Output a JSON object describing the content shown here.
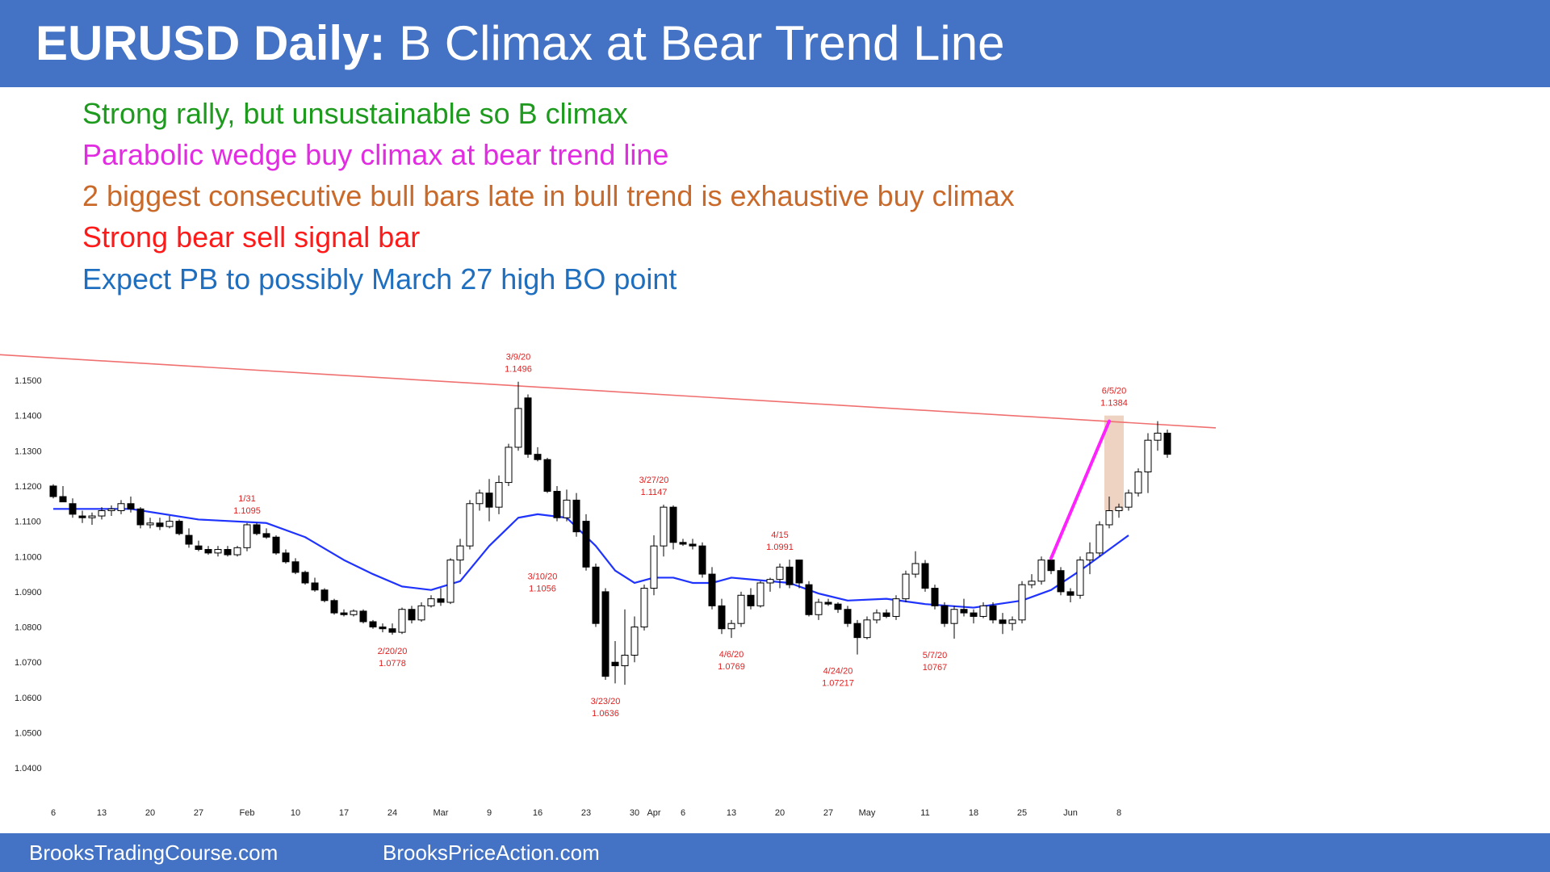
{
  "header": {
    "title_bold": "EURUSD Daily:",
    "title_rest": " B Climax at Bear Trend Line"
  },
  "notes": [
    {
      "text": "Strong rally, but unsustainable so B climax",
      "color": "#1e9a1e"
    },
    {
      "text": "Parabolic wedge buy climax at bear trend line",
      "color": "#e22ce2"
    },
    {
      "text": "2 biggest consecutive bull bars late in bull trend is exhaustive buy climax",
      "color": "#c96a2a"
    },
    {
      "text": "Strong bear sell signal bar",
      "color": "#ff1a1a"
    },
    {
      "text": "Expect PB to possibly March 27 high BO point",
      "color": "#1f6fc0"
    }
  ],
  "footer": {
    "left": "BrooksTradingCourse.com",
    "right": "BrooksPriceAction.com"
  },
  "colors": {
    "header_bg": "#4472c4",
    "ma": "#1f33ff",
    "trendline": "#f07070",
    "wedge": "#ff22ff",
    "annotation": "#e02020",
    "zone": "#e9c4ad"
  },
  "chart_data": {
    "type": "candlestick",
    "title": "",
    "xlabel": "",
    "ylabel": "",
    "ylim": [
      1.036,
      1.156
    ],
    "y_ticks": [
      1.15,
      1.14,
      1.13,
      1.12,
      1.11,
      1.1,
      1.09,
      1.08,
      1.07,
      1.06,
      1.05,
      1.04
    ],
    "y_tick_labels": [
      "1.1500",
      "1.1400",
      "1.1300",
      "1.1200",
      "1.1100",
      "1.1000",
      "1.0900",
      "1.0800",
      "1.0700",
      "1.0600",
      "1.0500",
      "1.0400"
    ],
    "x_ticks": [
      {
        "label": "6",
        "i": 0
      },
      {
        "label": "13",
        "i": 5
      },
      {
        "label": "20",
        "i": 10
      },
      {
        "label": "27",
        "i": 15
      },
      {
        "label": "Feb",
        "i": 20
      },
      {
        "label": "10",
        "i": 25
      },
      {
        "label": "17",
        "i": 30
      },
      {
        "label": "24",
        "i": 35
      },
      {
        "label": "Mar",
        "i": 40
      },
      {
        "label": "9",
        "i": 45
      },
      {
        "label": "16",
        "i": 50
      },
      {
        "label": "23",
        "i": 55
      },
      {
        "label": "30",
        "i": 60
      },
      {
        "label": "Apr",
        "i": 62
      },
      {
        "label": "6",
        "i": 65
      },
      {
        "label": "13",
        "i": 70
      },
      {
        "label": "20",
        "i": 75
      },
      {
        "label": "27",
        "i": 80
      },
      {
        "label": "May",
        "i": 84
      },
      {
        "label": "11",
        "i": 90
      },
      {
        "label": "18",
        "i": 95
      },
      {
        "label": "25",
        "i": 100
      },
      {
        "label": "Jun",
        "i": 105
      },
      {
        "label": "8",
        "i": 110
      }
    ],
    "candles": [
      [
        1.12,
        1.1205,
        1.1165,
        1.117
      ],
      [
        1.117,
        1.12,
        1.1155,
        1.1155
      ],
      [
        1.115,
        1.1165,
        1.111,
        1.112
      ],
      [
        1.1115,
        1.113,
        1.1095,
        1.111
      ],
      [
        1.111,
        1.1125,
        1.109,
        1.1115
      ],
      [
        1.1115,
        1.114,
        1.1105,
        1.113
      ],
      [
        1.113,
        1.1145,
        1.1115,
        1.1135
      ],
      [
        1.113,
        1.116,
        1.112,
        1.115
      ],
      [
        1.115,
        1.117,
        1.1125,
        1.1135
      ],
      [
        1.1135,
        1.114,
        1.108,
        1.109
      ],
      [
        1.109,
        1.111,
        1.108,
        1.1095
      ],
      [
        1.1095,
        1.111,
        1.1075,
        1.1085
      ],
      [
        1.1085,
        1.1115,
        1.108,
        1.11
      ],
      [
        1.11,
        1.1105,
        1.106,
        1.1065
      ],
      [
        1.106,
        1.108,
        1.1025,
        1.1035
      ],
      [
        1.103,
        1.1045,
        1.1015,
        1.102
      ],
      [
        1.102,
        1.103,
        1.1005,
        1.101
      ],
      [
        1.101,
        1.103,
        1.1,
        1.102
      ],
      [
        1.102,
        1.103,
        1.1,
        1.1005
      ],
      [
        1.1005,
        1.103,
        1.1,
        1.1025
      ],
      [
        1.1025,
        1.1095,
        1.1015,
        1.109
      ],
      [
        1.109,
        1.1095,
        1.106,
        1.1065
      ],
      [
        1.1065,
        1.108,
        1.105,
        1.1055
      ],
      [
        1.1055,
        1.106,
        1.1005,
        1.101
      ],
      [
        1.101,
        1.102,
        1.098,
        1.0985
      ],
      [
        1.0985,
        1.0995,
        1.095,
        1.0955
      ],
      [
        1.0955,
        1.096,
        1.092,
        1.0925
      ],
      [
        1.0925,
        1.094,
        1.09,
        1.0905
      ],
      [
        1.0905,
        1.091,
        1.087,
        1.0875
      ],
      [
        1.0875,
        1.088,
        1.0835,
        1.084
      ],
      [
        1.084,
        1.085,
        1.083,
        1.0835
      ],
      [
        1.0835,
        1.085,
        1.083,
        1.0845
      ],
      [
        1.0845,
        1.085,
        1.081,
        1.0815
      ],
      [
        1.0815,
        1.082,
        1.0795,
        1.08
      ],
      [
        1.08,
        1.081,
        1.0785,
        1.0795
      ],
      [
        1.0795,
        1.081,
        1.0778,
        1.0785
      ],
      [
        1.0785,
        1.0855,
        1.078,
        1.085
      ],
      [
        1.085,
        1.086,
        1.081,
        1.082
      ],
      [
        1.082,
        1.087,
        1.0815,
        1.086
      ],
      [
        1.086,
        1.089,
        1.0855,
        1.088
      ],
      [
        1.088,
        1.091,
        1.086,
        1.087
      ],
      [
        1.087,
        1.0995,
        1.0865,
        1.099
      ],
      [
        1.099,
        1.105,
        1.095,
        1.103
      ],
      [
        1.103,
        1.116,
        1.102,
        1.115
      ],
      [
        1.115,
        1.119,
        1.113,
        1.118
      ],
      [
        1.118,
        1.122,
        1.11,
        1.114
      ],
      [
        1.114,
        1.123,
        1.112,
        1.121
      ],
      [
        1.121,
        1.132,
        1.12,
        1.131
      ],
      [
        1.131,
        1.1496,
        1.13,
        1.142
      ],
      [
        1.145,
        1.146,
        1.128,
        1.129
      ],
      [
        1.129,
        1.131,
        1.127,
        1.1275
      ],
      [
        1.1275,
        1.128,
        1.118,
        1.1185
      ],
      [
        1.1185,
        1.12,
        1.11,
        1.111
      ],
      [
        1.111,
        1.119,
        1.11,
        1.116
      ],
      [
        1.116,
        1.118,
        1.1056,
        1.107
      ],
      [
        1.11,
        1.112,
        1.096,
        1.097
      ],
      [
        1.097,
        1.098,
        1.08,
        1.081
      ],
      [
        1.09,
        1.091,
        1.065,
        1.066
      ],
      [
        1.07,
        1.076,
        1.064,
        1.069
      ],
      [
        1.069,
        1.085,
        1.0636,
        1.072
      ],
      [
        1.072,
        1.083,
        1.07,
        1.08
      ],
      [
        1.08,
        1.092,
        1.079,
        1.091
      ],
      [
        1.091,
        1.106,
        1.089,
        1.103
      ],
      [
        1.103,
        1.1147,
        1.1,
        1.114
      ],
      [
        1.114,
        1.1145,
        1.102,
        1.104
      ],
      [
        1.104,
        1.105,
        1.103,
        1.1035
      ],
      [
        1.1035,
        1.105,
        1.102,
        1.103
      ],
      [
        1.103,
        1.104,
        1.094,
        1.095
      ],
      [
        1.095,
        1.097,
        1.085,
        1.086
      ],
      [
        1.086,
        1.088,
        1.078,
        1.0795
      ],
      [
        1.0795,
        1.082,
        1.0769,
        1.081
      ],
      [
        1.081,
        1.09,
        1.08,
        1.089
      ],
      [
        1.089,
        1.091,
        1.085,
        1.086
      ],
      [
        1.086,
        1.093,
        1.0855,
        1.0925
      ],
      [
        1.0925,
        1.094,
        1.09,
        1.0935
      ],
      [
        1.0935,
        1.098,
        1.091,
        1.097
      ],
      [
        1.097,
        1.0991,
        1.091,
        1.092
      ],
      [
        1.099,
        1.0991,
        1.091,
        1.0925
      ],
      [
        1.092,
        1.093,
        1.083,
        1.0835
      ],
      [
        1.0835,
        1.088,
        1.082,
        1.087
      ],
      [
        1.087,
        1.088,
        1.086,
        1.0865
      ],
      [
        1.0865,
        1.087,
        1.084,
        1.085
      ],
      [
        1.085,
        1.086,
        1.08,
        1.081
      ],
      [
        1.081,
        1.082,
        1.0722,
        1.077
      ],
      [
        1.077,
        1.083,
        1.0765,
        1.082
      ],
      [
        1.082,
        1.085,
        1.081,
        1.084
      ],
      [
        1.084,
        1.085,
        1.0825,
        1.083
      ],
      [
        1.083,
        1.089,
        1.082,
        1.088
      ],
      [
        1.088,
        1.096,
        1.087,
        1.095
      ],
      [
        1.095,
        1.1015,
        1.094,
        1.098
      ],
      [
        1.098,
        1.099,
        1.09,
        1.091
      ],
      [
        1.091,
        1.092,
        1.085,
        1.086
      ],
      [
        1.086,
        1.087,
        1.08,
        1.081
      ],
      [
        1.081,
        1.086,
        1.0767,
        1.085
      ],
      [
        1.085,
        1.088,
        1.083,
        1.084
      ],
      [
        1.084,
        1.085,
        1.081,
        1.083
      ],
      [
        1.083,
        1.087,
        1.0825,
        1.086
      ],
      [
        1.086,
        1.087,
        1.081,
        1.082
      ],
      [
        1.082,
        1.084,
        1.078,
        1.081
      ],
      [
        1.081,
        1.083,
        1.079,
        1.082
      ],
      [
        1.082,
        1.093,
        1.081,
        1.092
      ],
      [
        1.092,
        1.095,
        1.091,
        1.093
      ],
      [
        1.093,
        1.1,
        1.092,
        1.099
      ],
      [
        1.099,
        1.1,
        1.095,
        1.096
      ],
      [
        1.096,
        1.097,
        1.089,
        1.09
      ],
      [
        1.09,
        1.091,
        1.087,
        1.089
      ],
      [
        1.089,
        1.1,
        1.088,
        1.099
      ],
      [
        1.099,
        1.104,
        1.095,
        1.101
      ],
      [
        1.101,
        1.11,
        1.1,
        1.109
      ],
      [
        1.109,
        1.117,
        1.108,
        1.113
      ],
      [
        1.113,
        1.115,
        1.111,
        1.114
      ],
      [
        1.114,
        1.119,
        1.113,
        1.118
      ],
      [
        1.118,
        1.125,
        1.117,
        1.124
      ],
      [
        1.124,
        1.135,
        1.118,
        1.133
      ],
      [
        1.133,
        1.1384,
        1.13,
        1.135
      ],
      [
        1.135,
        1.136,
        1.128,
        1.129
      ]
    ],
    "moving_average": [
      [
        0,
        1.1135
      ],
      [
        8,
        1.1135
      ],
      [
        15,
        1.1105
      ],
      [
        22,
        1.1095
      ],
      [
        26,
        1.1055
      ],
      [
        30,
        1.099
      ],
      [
        33,
        1.095
      ],
      [
        36,
        1.0915
      ],
      [
        39,
        1.0905
      ],
      [
        42,
        1.093
      ],
      [
        45,
        1.103
      ],
      [
        48,
        1.111
      ],
      [
        50,
        1.112
      ],
      [
        53,
        1.111
      ],
      [
        56,
        1.103
      ],
      [
        58,
        1.096
      ],
      [
        60,
        1.0925
      ],
      [
        62,
        1.094
      ],
      [
        64,
        1.094
      ],
      [
        66,
        1.0925
      ],
      [
        68,
        1.0925
      ],
      [
        70,
        1.094
      ],
      [
        72,
        1.0935
      ],
      [
        76,
        1.0925
      ],
      [
        79,
        1.0895
      ],
      [
        82,
        1.0875
      ],
      [
        86,
        1.088
      ],
      [
        90,
        1.0865
      ],
      [
        95,
        1.0855
      ],
      [
        100,
        1.0875
      ],
      [
        103,
        1.0905
      ],
      [
        106,
        1.096
      ],
      [
        108,
        1.1
      ],
      [
        110,
        1.104
      ],
      [
        111,
        1.106
      ]
    ],
    "trendline": {
      "start": {
        "i": -7,
        "y": 1.1575
      },
      "end": {
        "i": 120,
        "y": 1.1365
      }
    },
    "wedge_line": {
      "start": {
        "i": 103,
        "y": 1.0995
      },
      "end": {
        "i": 109,
        "y": 1.1384
      }
    },
    "climax_zone": {
      "i_start": 108.5,
      "i_end": 110.5,
      "y_low": 1.113,
      "y_high": 1.14
    },
    "annotations": [
      {
        "text": "3/9/20",
        "value": "1.1496",
        "i": 48,
        "y": 1.1496,
        "pos": "above"
      },
      {
        "text": "6/5/20",
        "value": "1.1384",
        "i": 109.5,
        "y": 1.14,
        "pos": "above"
      },
      {
        "text": "1/31",
        "value": "1.1095",
        "i": 20,
        "y": 1.1095,
        "pos": "above"
      },
      {
        "text": "3/27/20",
        "value": "1.1147",
        "i": 62,
        "y": 1.1147,
        "pos": "above"
      },
      {
        "text": "4/15",
        "value": "1.0991",
        "i": 75,
        "y": 1.0991,
        "pos": "above"
      },
      {
        "text": "3/10/20",
        "value": "1.1056",
        "i": 50.5,
        "y": 1.099,
        "pos": "below"
      },
      {
        "text": "2/20/20",
        "value": "1.0778",
        "i": 35,
        "y": 1.0778,
        "pos": "below"
      },
      {
        "text": "4/6/20",
        "value": "1.0769",
        "i": 70,
        "y": 1.0769,
        "pos": "below"
      },
      {
        "text": "4/24/20",
        "value": "1.07217",
        "i": 81,
        "y": 1.0722,
        "pos": "below"
      },
      {
        "text": "5/7/20",
        "value": "10767",
        "i": 91,
        "y": 1.0767,
        "pos": "below"
      },
      {
        "text": "3/23/20",
        "value": "1.0636",
        "i": 57,
        "y": 1.0636,
        "pos": "below"
      }
    ]
  }
}
